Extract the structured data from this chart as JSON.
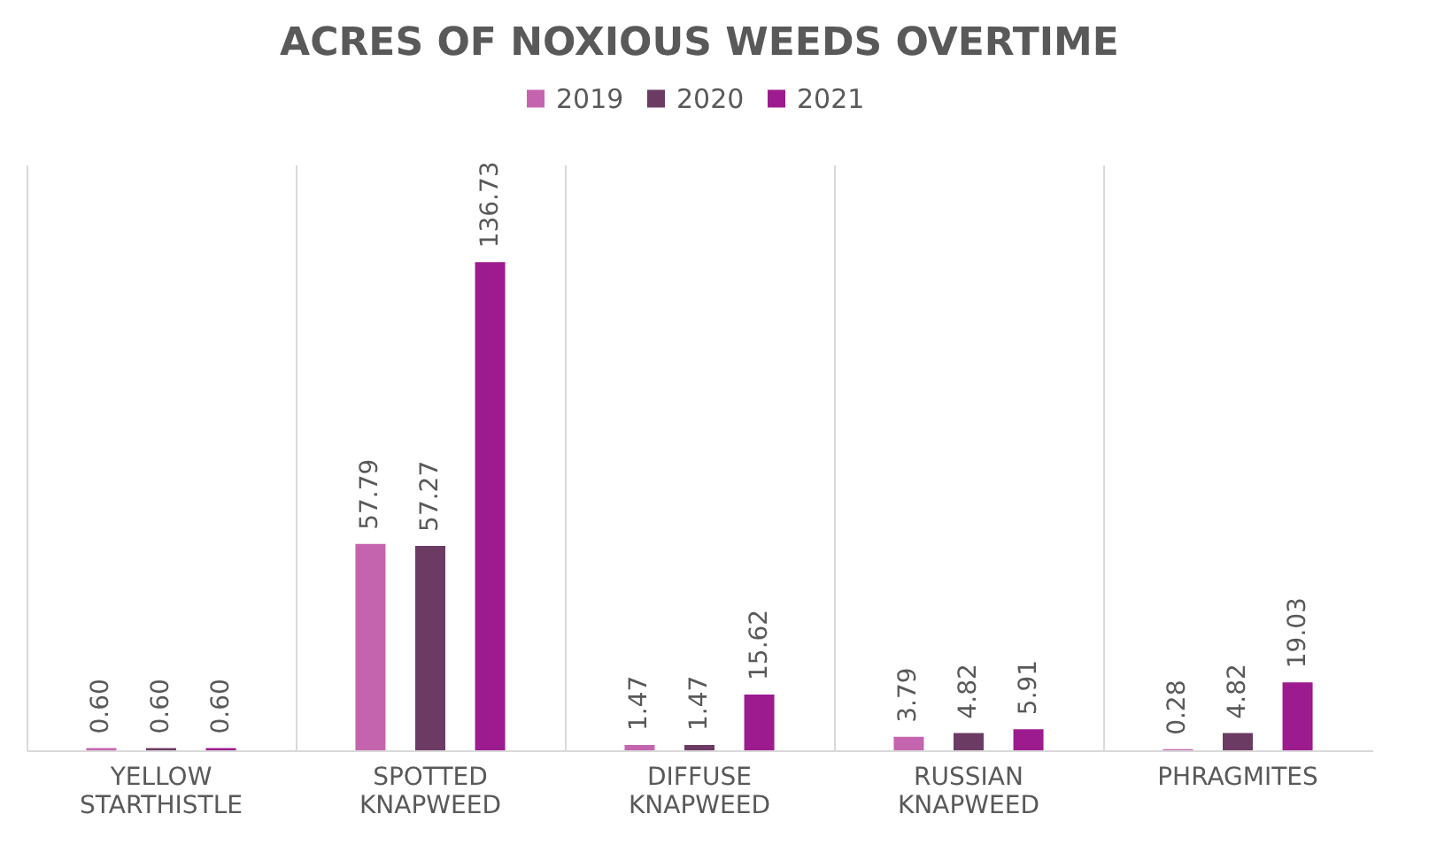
{
  "chart_data": {
    "type": "bar",
    "title": "ACRES OF NOXIOUS WEEDS OVERTIME",
    "categories": [
      "YELLOW STARTHISTLE",
      "SPOTTED KNAPWEED",
      "DIFFUSE KNAPWEED",
      "RUSSIAN KNAPWEED",
      "PHRAGMITES"
    ],
    "series": [
      {
        "name": "2019",
        "color": "#c564ae",
        "values": [
          0.6,
          57.79,
          1.47,
          3.79,
          0.28
        ],
        "value_labels": [
          "0.60",
          "57.79",
          "1.47",
          "3.79",
          "0.28"
        ]
      },
      {
        "name": "2020",
        "color": "#6c3b64",
        "values": [
          0.6,
          57.27,
          1.47,
          4.82,
          4.82
        ],
        "value_labels": [
          "0.60",
          "57.27",
          "1.47",
          "4.82",
          "4.82"
        ]
      },
      {
        "name": "2021",
        "color": "#9c1b8f",
        "values": [
          0.6,
          136.73,
          15.62,
          5.91,
          19.03
        ],
        "value_labels": [
          "0.60",
          "136.73",
          "15.62",
          "5.91",
          "19.03"
        ]
      }
    ],
    "grid": "x",
    "legend": "top"
  }
}
